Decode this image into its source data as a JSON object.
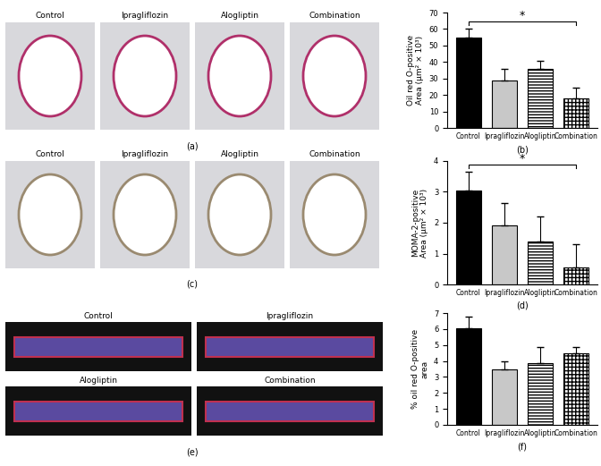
{
  "chart_data": [
    {
      "type": "bar",
      "annotation": "(b)",
      "ylabel": "Oil red O-positive\nArea (μm² × 10³)",
      "categories": [
        "Control",
        "Ipragliflozin",
        "Alogliptin",
        "Combination"
      ],
      "values": [
        55,
        28.5,
        36,
        18
      ],
      "errors": [
        5.5,
        7.5,
        4.5,
        6.5
      ],
      "colors": [
        "#000000",
        "#c8c8c8",
        "#ffffff",
        "#ffffff"
      ],
      "ylim": [
        0,
        70
      ],
      "yticks": [
        0,
        10,
        20,
        30,
        40,
        50,
        60,
        70
      ],
      "significance": [
        {
          "from": "Control",
          "to": "Combination",
          "label": "*"
        }
      ]
    },
    {
      "type": "bar",
      "annotation": "(d)",
      "ylabel": "MOMA-2-positive\nArea (μm² × 10³)",
      "categories": [
        "Control",
        "Ipragliflozin",
        "Alogliptin",
        "Combination"
      ],
      "values": [
        3.05,
        1.9,
        1.4,
        0.55
      ],
      "errors": [
        0.6,
        0.75,
        0.8,
        0.75
      ],
      "colors": [
        "#000000",
        "#c8c8c8",
        "#ffffff",
        "#ffffff"
      ],
      "ylim": [
        0,
        4
      ],
      "yticks": [
        0,
        1,
        2,
        3,
        4
      ],
      "significance": [
        {
          "from": "Control",
          "to": "Combination",
          "label": "*"
        }
      ]
    },
    {
      "type": "bar",
      "annotation": "(f)",
      "ylabel": "% oil red O-positive\narea",
      "categories": [
        "Control",
        "Ipragliflozin",
        "Alogliptin",
        "Combination"
      ],
      "values": [
        6.05,
        3.5,
        3.85,
        4.5
      ],
      "errors": [
        0.75,
        0.5,
        1.0,
        0.35
      ],
      "colors": [
        "#000000",
        "#c8c8c8",
        "#ffffff",
        "#ffffff"
      ],
      "ylim": [
        0,
        7
      ],
      "yticks": [
        0,
        1,
        2,
        3,
        4,
        5,
        6,
        7
      ]
    }
  ],
  "image_panels": [
    {
      "annotation": "(a)",
      "titles": [
        "Control",
        "Ipragliflozin",
        "Alogliptin",
        "Combination"
      ]
    },
    {
      "annotation": "(c)",
      "titles": [
        "Control",
        "Ipragliflozin",
        "Alogliptin",
        "Combination"
      ]
    },
    {
      "annotation": "(e)",
      "titles": [
        "Control",
        "Ipragliflozin",
        "Alogliptin",
        "Combination"
      ]
    }
  ]
}
